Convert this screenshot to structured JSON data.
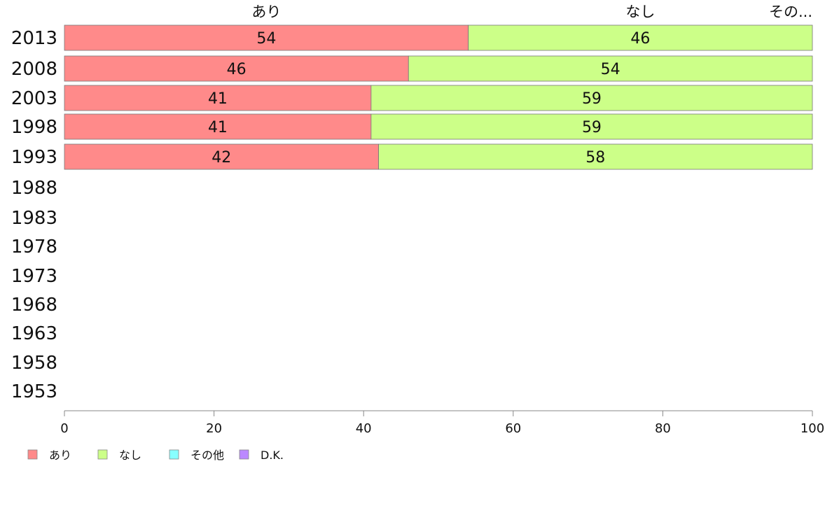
{
  "chart_data": {
    "type": "bar",
    "orientation": "horizontal",
    "stacked": true,
    "categories": [
      "2013",
      "2008",
      "2003",
      "1998",
      "1993",
      "1988",
      "1983",
      "1978",
      "1973",
      "1968",
      "1963",
      "1958",
      "1953"
    ],
    "series": [
      {
        "name": "あり",
        "color": "#ff8a8a",
        "values": [
          54,
          46,
          41,
          41,
          42,
          null,
          null,
          null,
          null,
          null,
          null,
          null,
          null
        ]
      },
      {
        "name": "なし",
        "color": "#ccff88",
        "values": [
          46,
          54,
          59,
          59,
          58,
          null,
          null,
          null,
          null,
          null,
          null,
          null,
          null
        ]
      },
      {
        "name": "その他",
        "color": "#88ffff",
        "values": [
          0,
          0,
          0,
          0,
          0,
          null,
          null,
          null,
          null,
          null,
          null,
          null,
          null
        ]
      },
      {
        "name": "D.K.",
        "color": "#bb88ff",
        "values": [
          0,
          0,
          0,
          0,
          0,
          null,
          null,
          null,
          null,
          null,
          null,
          null,
          null
        ]
      }
    ],
    "top_labels": [
      "あり",
      "なし",
      "その..."
    ],
    "xlim": [
      0,
      100
    ],
    "xticks": [
      0,
      20,
      40,
      60,
      80,
      100
    ],
    "legend_position": "bottom-left",
    "grid": false
  }
}
